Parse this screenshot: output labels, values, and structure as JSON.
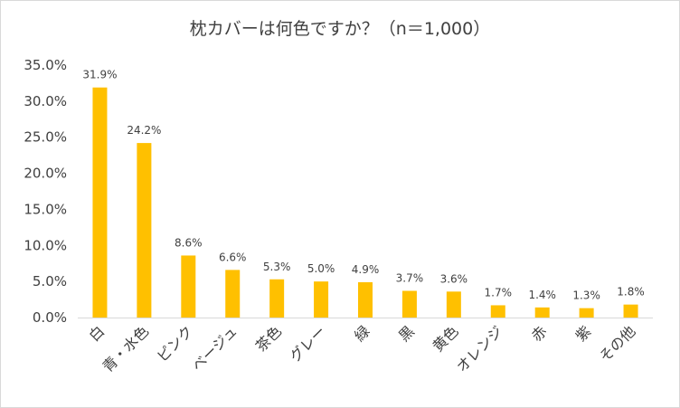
{
  "chart_data": {
    "type": "bar",
    "title": "枕カバーは何色ですか？（n＝1,000）",
    "categories": [
      "白",
      "青・水色",
      "ピンク",
      "ベージュ",
      "茶色",
      "グレー",
      "緑",
      "黒",
      "黄色",
      "オレンジ",
      "赤",
      "紫",
      "その他"
    ],
    "values": [
      31.9,
      24.2,
      8.6,
      6.6,
      5.3,
      5.0,
      4.9,
      3.7,
      3.6,
      1.7,
      1.4,
      1.3,
      1.8
    ],
    "data_labels": [
      "31.9%",
      "24.2%",
      "8.6%",
      "6.6%",
      "5.3%",
      "5.0%",
      "4.9%",
      "3.7%",
      "3.6%",
      "1.7%",
      "1.4%",
      "1.3%",
      "1.8%"
    ],
    "yticks": [
      "0.0%",
      "5.0%",
      "10.0%",
      "15.0%",
      "20.0%",
      "25.0%",
      "30.0%",
      "35.0%"
    ],
    "ylim": [
      0,
      35
    ],
    "xlabel": "",
    "ylabel": "",
    "grid": false,
    "legend": "none",
    "bar_color": "#FFC000"
  }
}
